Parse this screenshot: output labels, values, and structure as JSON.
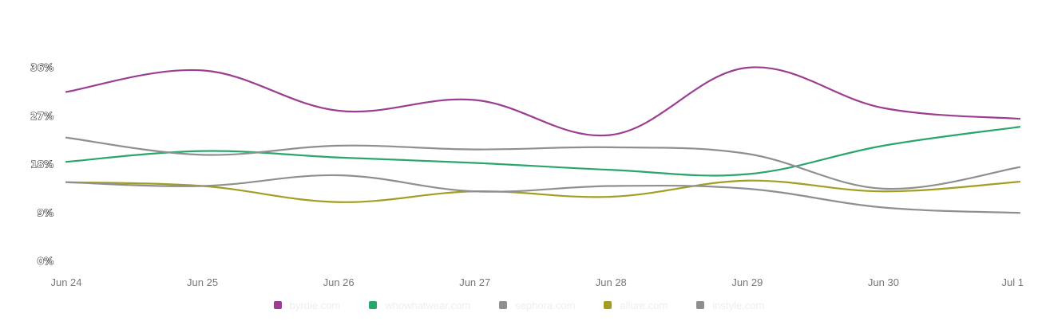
{
  "chart_data": {
    "type": "line",
    "title": "",
    "xlabel": "",
    "ylabel": "",
    "categories": [
      "Jun 24",
      "Jun 25",
      "Jun 26",
      "Jun 27",
      "Jun 28",
      "Jun 29",
      "Jun 30",
      "Jul 1"
    ],
    "y_ticks": [
      "0%",
      "9%",
      "18%",
      "27%",
      "36%"
    ],
    "ylim": [
      0,
      36
    ],
    "grid": false,
    "legend_position": "bottom-center",
    "series": [
      {
        "name": "byrdie.com",
        "color": "#9b3e93",
        "values": [
          31.5,
          35.5,
          28.0,
          30.0,
          23.5,
          36.0,
          28.5,
          26.5
        ]
      },
      {
        "name": "whowhatwear.com",
        "color": "#2aa66a",
        "values": [
          18.5,
          20.5,
          19.3,
          18.3,
          17.0,
          16.2,
          21.5,
          25.0
        ]
      },
      {
        "name": "sephora.com",
        "color": "#8f8f8f",
        "values": [
          23.0,
          19.8,
          21.5,
          20.8,
          21.2,
          20.0,
          13.5,
          17.5
        ]
      },
      {
        "name": "allure.com",
        "color": "#a39e22",
        "values": [
          14.7,
          14.0,
          11.0,
          13.0,
          12.0,
          15.0,
          13.0,
          14.8
        ]
      },
      {
        "name": "instyle.com",
        "color": "#8f8f8f",
        "values": [
          14.7,
          14.0,
          16.0,
          13.0,
          14.0,
          13.5,
          10.0,
          9.0
        ]
      }
    ]
  }
}
